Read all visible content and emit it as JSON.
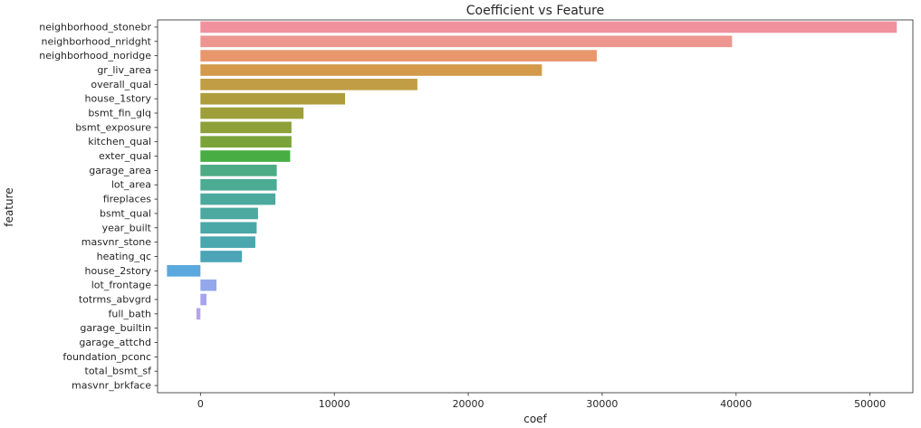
{
  "chart_data": {
    "type": "bar",
    "orientation": "horizontal",
    "title": "Coefficient vs Feature",
    "xlabel": "coef",
    "ylabel": "feature",
    "xlim": [
      -3200,
      53200
    ],
    "xticks": [
      0,
      10000,
      20000,
      30000,
      40000,
      50000
    ],
    "xtick_labels": [
      "0",
      "10000",
      "20000",
      "30000",
      "40000",
      "50000"
    ],
    "grid": false,
    "categories": [
      "neighborhood_stonebr",
      "neighborhood_nridght",
      "neighborhood_noridge",
      "gr_liv_area",
      "overall_qual",
      "house_1story",
      "bsmt_fin_glq",
      "bsmt_exposure",
      "kitchen_qual",
      "exter_qual",
      "garage_area",
      "lot_area",
      "fireplaces",
      "bsmt_qual",
      "year_built",
      "masvnr_stone",
      "heating_qc",
      "house_2story",
      "lot_frontage",
      "totrms_abvgrd",
      "full_bath",
      "garage_builtin",
      "garage_attchd",
      "foundation_pconc",
      "total_bsmt_sf",
      "masvnr_brkface"
    ],
    "values": [
      52000,
      39700,
      29600,
      25500,
      16200,
      10800,
      7700,
      6800,
      6800,
      6700,
      5700,
      5700,
      5600,
      4300,
      4200,
      4100,
      3100,
      -2500,
      1200,
      450,
      -300,
      0,
      0,
      0,
      0,
      0
    ],
    "colors": [
      "#f0929e",
      "#ed9690",
      "#e8976d",
      "#d39a4c",
      "#c19d45",
      "#ae9d3c",
      "#9e9f3a",
      "#8da03a",
      "#7aa43a",
      "#48ae44",
      "#4dab85",
      "#4bab93",
      "#4baa9d",
      "#4ba99f",
      "#4aa8a7",
      "#4aa7ae",
      "#4ba5b6",
      "#5aa8dd",
      "#93a8ec",
      "#a5a4ed",
      "#b8a3e9",
      "#c7a1ea",
      "#d79ce9",
      "#e595e2",
      "#ee94d4",
      "#f291c1"
    ]
  }
}
